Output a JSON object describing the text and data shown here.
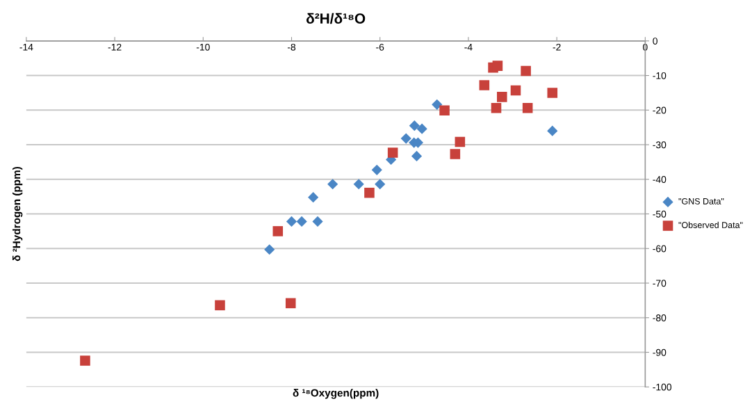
{
  "chart_data": {
    "type": "scatter",
    "title": "δ²H/δ¹⁸O",
    "xlabel": "δ ¹⁸Oxygen(ppm)",
    "ylabel": "δ ²Hydrogen (ppm)",
    "series": [
      {
        "name": "\"GNS Data\"",
        "color": "#4a86c5",
        "marker": "diamond",
        "x": [
          -8.5,
          -8.0,
          -7.77,
          -7.51,
          -7.41,
          -7.07,
          -6.48,
          -6.0,
          -6.07,
          -5.75,
          -5.41,
          -5.22,
          -5.05,
          -5.23,
          -5.14,
          -5.17,
          -4.71,
          -2.1
        ],
        "values": [
          -60.3,
          -52.2,
          -52.2,
          -45.2,
          -52.2,
          -41.4,
          -41.4,
          -41.4,
          -37.3,
          -34.3,
          -28.2,
          -24.5,
          -25.4,
          -29.4,
          -29.4,
          -33.3,
          -18.4,
          -26.0
        ]
      },
      {
        "name": "\"Observed Data\"",
        "color": "#c8413b",
        "marker": "square",
        "x": [
          -12.67,
          -9.62,
          -8.02,
          -8.31,
          -6.24,
          -5.71,
          -4.54,
          -4.3,
          -4.19,
          -3.64,
          -3.44,
          -3.34,
          -2.7,
          -2.93,
          -3.24,
          -3.37,
          -2.66,
          -2.1
        ],
        "values": [
          -92.4,
          -76.4,
          -75.8,
          -55.0,
          -43.9,
          -32.3,
          -20.1,
          -32.7,
          -29.2,
          -12.8,
          -7.7,
          -7.2,
          -8.7,
          -14.3,
          -16.2,
          -19.4,
          -19.4,
          -15.0
        ]
      }
    ],
    "xlim": [
      -14,
      0
    ],
    "xticks": [
      -14,
      -12,
      -10,
      -8,
      -6,
      -4,
      -2,
      0
    ],
    "ylim": [
      -100,
      0
    ],
    "yticks": [
      0,
      -10,
      -20,
      -30,
      -40,
      -50,
      -60,
      -70,
      -80,
      -90,
      -100
    ],
    "grid": "y",
    "legend": "right"
  }
}
